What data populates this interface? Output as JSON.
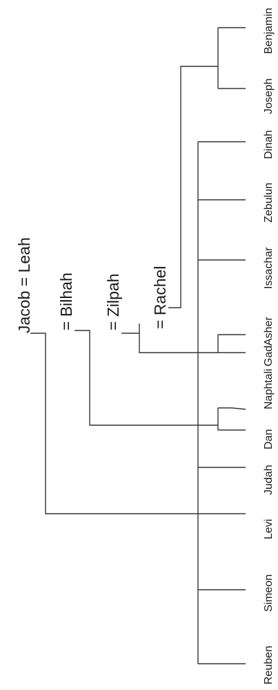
{
  "parents": {
    "jacob_leah": "Jacob = Leah",
    "bilhah": "= Bilhah",
    "zilpah": "= Zilpah",
    "rachel": "= Rachel"
  },
  "children": [
    {
      "name": "Reuben",
      "mother": "Leah"
    },
    {
      "name": "Simeon",
      "mother": "Leah"
    },
    {
      "name": "Levi",
      "mother": "Leah"
    },
    {
      "name": "Judah",
      "mother": "Leah"
    },
    {
      "name": "Dan",
      "mother": "Bilhah"
    },
    {
      "name": "Naphtali",
      "mother": "Bilhah"
    },
    {
      "name": "Gad",
      "mother": "Zilpah"
    },
    {
      "name": "Asher",
      "mother": "Zilpah"
    },
    {
      "name": "Issachar",
      "mother": "Leah"
    },
    {
      "name": "Zebulun",
      "mother": "Leah"
    },
    {
      "name": "Dinah",
      "mother": "Leah"
    },
    {
      "name": "Joseph",
      "mother": "Rachel"
    },
    {
      "name": "Benjamin",
      "mother": "Rachel"
    }
  ]
}
